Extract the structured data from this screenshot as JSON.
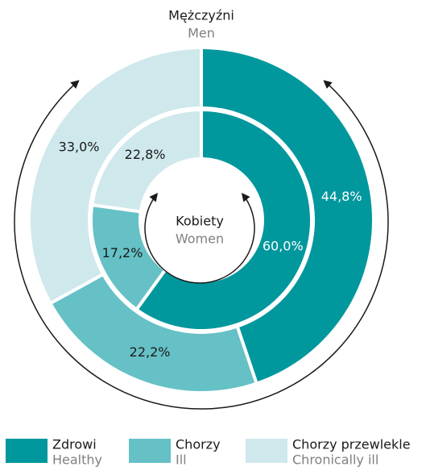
{
  "chart_data": {
    "type": "nested-donut",
    "categories": [
      "Zdrowi",
      "Chorzy",
      "Chorzy przewlekle"
    ],
    "category_translations": [
      "Healthy",
      "Ill",
      "Chronically ill"
    ],
    "colors": [
      "#00979d",
      "#66c1c6",
      "#cfe8ec"
    ],
    "series": [
      {
        "name": "Mężczyźni",
        "translation": "Men",
        "values": [
          44.8,
          22.2,
          33.0
        ],
        "value_labels": [
          "44,8%",
          "22,2%",
          "33,0%"
        ]
      },
      {
        "name": "Kobiety",
        "translation": "Women",
        "values": [
          60.0,
          17.2,
          22.8
        ],
        "value_labels": [
          "60,0%",
          "17,2%",
          "22,8%"
        ]
      }
    ]
  }
}
